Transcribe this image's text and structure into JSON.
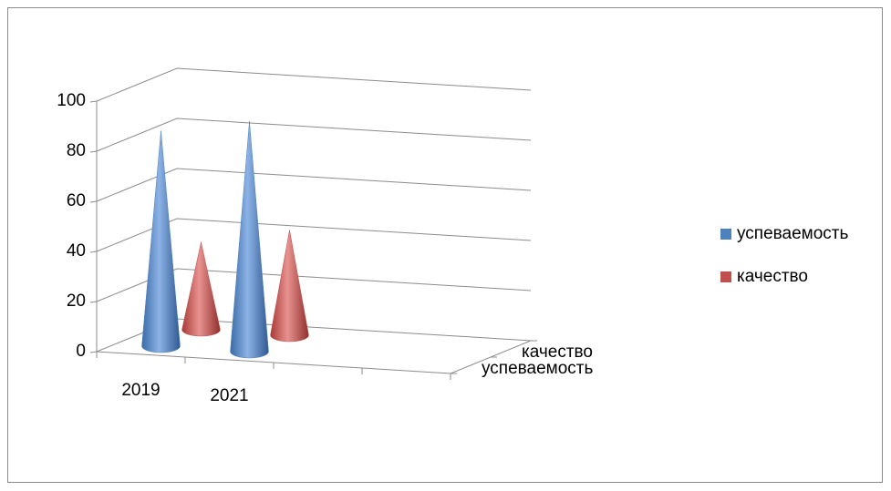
{
  "chart_data": {
    "type": "cone3d",
    "categories": [
      "2019",
      "2021",
      null,
      null
    ],
    "series": [
      {
        "name": "успеваемость",
        "color": "#4f81bd",
        "values": [
          86,
          92,
          null,
          null
        ]
      },
      {
        "name": "качество",
        "color": "#c0504d",
        "values": [
          35,
          42,
          null,
          null
        ]
      }
    ],
    "ylim": [
      0,
      100
    ],
    "yticks": [
      0,
      20,
      40,
      60,
      80,
      100
    ],
    "grid": true,
    "legend": "right"
  }
}
